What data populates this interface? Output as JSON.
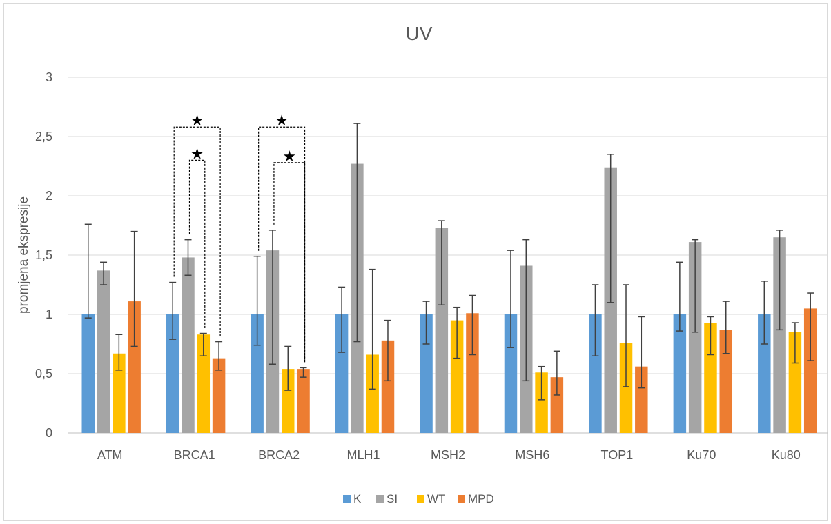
{
  "chart_data": {
    "type": "bar",
    "title": "UV",
    "xlabel": "",
    "ylabel": "promjena ekspresije",
    "ylim": [
      0,
      3
    ],
    "yticks": [
      "0",
      "0,5",
      "1",
      "1,5",
      "2",
      "2,5",
      "3"
    ],
    "grid": true,
    "legend": "bottom",
    "categories": [
      "ATM",
      "BRCA1",
      "BRCA2",
      "MLH1",
      "MSH2",
      "MSH6",
      "TOP1",
      "Ku70",
      "Ku80"
    ],
    "series": [
      {
        "name": "K",
        "color": "#5b9bd5",
        "values": [
          1,
          1,
          1,
          1,
          1,
          1,
          1,
          1,
          1
        ],
        "err_low": [
          0.97,
          0.79,
          0.74,
          0.68,
          0.75,
          0.72,
          0.65,
          0.86,
          0.75
        ],
        "err_high": [
          1.76,
          1.27,
          1.49,
          1.23,
          1.11,
          1.54,
          1.25,
          1.44,
          1.28
        ]
      },
      {
        "name": "SI",
        "color": "#a5a5a5",
        "values": [
          1.37,
          1.48,
          1.54,
          2.27,
          1.73,
          1.41,
          2.24,
          1.61,
          1.65
        ],
        "err_low": [
          1.25,
          1.33,
          0.58,
          0.77,
          1.08,
          0.44,
          1.1,
          0.85,
          0.87
        ],
        "err_high": [
          1.44,
          1.63,
          1.71,
          2.61,
          1.79,
          1.63,
          2.35,
          1.63,
          1.71
        ]
      },
      {
        "name": "WT",
        "color": "#ffc000",
        "values": [
          0.67,
          0.83,
          0.54,
          0.66,
          0.95,
          0.51,
          0.76,
          0.93,
          0.85
        ],
        "err_low": [
          0.53,
          0.65,
          0.36,
          0.37,
          0.63,
          0.28,
          0.39,
          0.66,
          0.59
        ],
        "err_high": [
          0.83,
          0.84,
          0.73,
          1.38,
          1.06,
          0.56,
          1.25,
          0.98,
          0.93
        ]
      },
      {
        "name": "MPD",
        "color": "#ed7d31",
        "values": [
          1.11,
          0.63,
          0.54,
          0.78,
          1.01,
          0.47,
          0.56,
          0.87,
          1.05
        ],
        "err_low": [
          0.73,
          0.53,
          0.47,
          0.44,
          0.66,
          0.32,
          0.38,
          0.67,
          0.61
        ],
        "err_high": [
          1.7,
          0.77,
          0.55,
          0.95,
          1.16,
          0.69,
          0.98,
          1.11,
          1.18
        ]
      }
    ],
    "significance": [
      {
        "category": "BRCA1",
        "from_series": 0,
        "to_series": 3,
        "level": 2.58,
        "marker": "★"
      },
      {
        "category": "BRCA1",
        "from_series": 1,
        "to_series": 2,
        "level": 2.3,
        "marker": "★"
      },
      {
        "category": "BRCA2",
        "from_series": 0,
        "to_series": 3,
        "level": 2.58,
        "marker": "★"
      },
      {
        "category": "BRCA2",
        "from_series": 1,
        "to_series": 3,
        "level": 2.28,
        "marker": "★"
      }
    ]
  }
}
